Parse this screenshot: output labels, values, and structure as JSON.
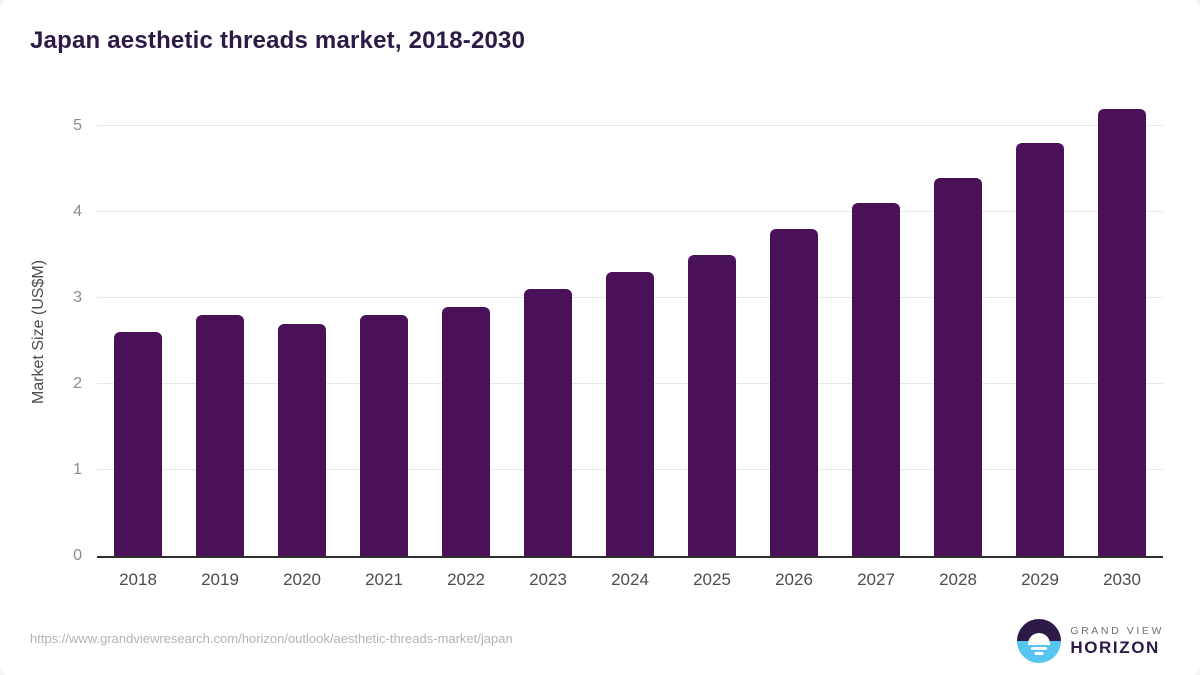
{
  "page": {
    "title": "Japan aesthetic threads market, 2018-2030",
    "source_url": "https://www.grandviewresearch.com/horizon/outlook/aesthetic-threads-market/japan",
    "logo": {
      "line1": "GRAND VIEW",
      "line2": "HORIZON"
    }
  },
  "chart_data": {
    "type": "bar",
    "title": "Japan aesthetic threads market, 2018-2030",
    "categories": [
      "2018",
      "2019",
      "2020",
      "2021",
      "2022",
      "2023",
      "2024",
      "2025",
      "2026",
      "2027",
      "2028",
      "2029",
      "2030"
    ],
    "values": [
      2.6,
      2.8,
      2.7,
      2.8,
      2.9,
      3.1,
      3.3,
      3.5,
      3.8,
      4.1,
      4.4,
      4.8,
      5.2
    ],
    "xlabel": "",
    "ylabel": "Market Size (US$M)",
    "ylim": [
      0,
      5.27
    ],
    "yticks": [
      0,
      1,
      2,
      3,
      4,
      5
    ],
    "grid": true,
    "legend": "none",
    "bar_color": "#4a1158"
  },
  "colors": {
    "title": "#2e1a47",
    "bar": "#4a1158",
    "gridline": "#e8e8e8",
    "axis_line": "#2e2e2e",
    "y_tick_label": "#8c8c8c",
    "x_tick_label": "#4d4d4d",
    "source_url": "#b3b3b3",
    "logo_blue": "#56c5f0",
    "logo_purple": "#2e1a47"
  }
}
